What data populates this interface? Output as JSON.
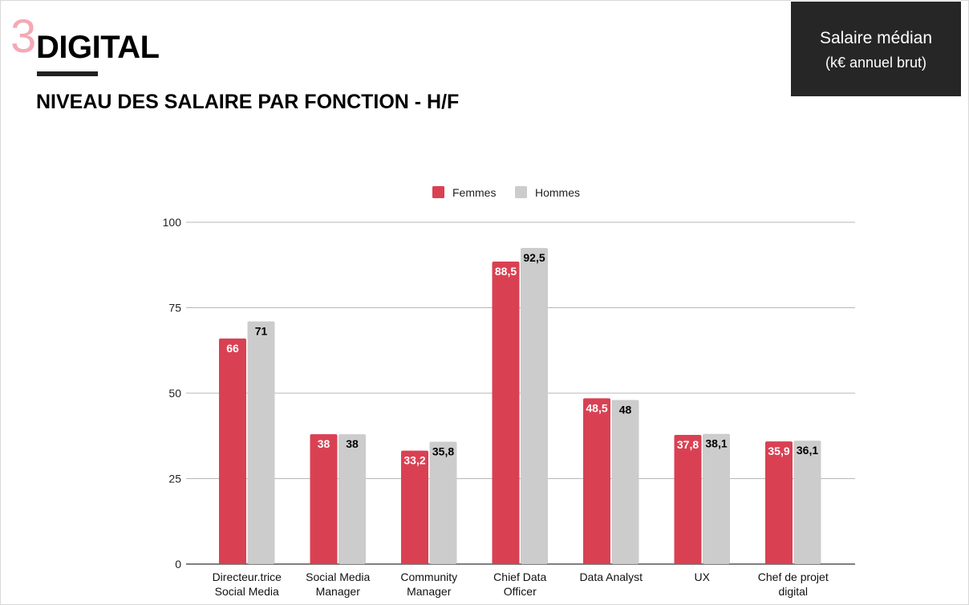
{
  "header": {
    "section_number": "3",
    "section_title": "DIGITAL",
    "subtitle": "NIVEAU DES SALAIRE PAR FONCTION - H/F"
  },
  "unit_box": {
    "line1": "Salaire médian",
    "line2": "(k€ annuel brut)"
  },
  "chart_data": {
    "type": "bar",
    "categories": [
      [
        "Directeur.trice",
        "Social Media"
      ],
      [
        "Social Media",
        "Manager"
      ],
      [
        "Community",
        "Manager"
      ],
      [
        "Chief Data",
        "Officer"
      ],
      [
        "Data Analyst"
      ],
      [
        "UX"
      ],
      [
        "Chef de projet",
        "digital"
      ]
    ],
    "series": [
      {
        "name": "Femmes",
        "color": "#d94153",
        "label_color": "#ffffff",
        "values": [
          66,
          38,
          33.2,
          88.5,
          48.5,
          37.8,
          35.9
        ],
        "labels": [
          "66",
          "38",
          "33,2",
          "88,5",
          "48,5",
          "37,8",
          "35,9"
        ]
      },
      {
        "name": "Hommes",
        "color": "#cccccc",
        "label_color": "#000000",
        "values": [
          71,
          38,
          35.8,
          92.5,
          48,
          38.1,
          36.1
        ],
        "labels": [
          "71",
          "38",
          "35,8",
          "92,5",
          "48",
          "38,1",
          "36,1"
        ]
      }
    ],
    "ylim": [
      0,
      100
    ],
    "yticks": [
      0,
      25,
      50,
      75,
      100
    ],
    "ytick_labels": [
      "0",
      "25",
      "50",
      "75",
      "100"
    ],
    "grid": true,
    "legend_position": "top-center",
    "xlabel": "",
    "ylabel": ""
  }
}
